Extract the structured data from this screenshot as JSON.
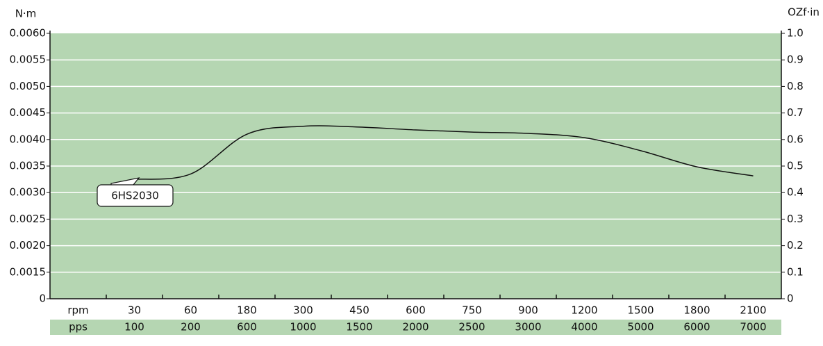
{
  "chart_data": {
    "type": "line",
    "y_label": "N·m",
    "y2_label": "OZf·in",
    "y_tick_labels": [
      "0",
      "0.0015",
      "0.0020",
      "0.0025",
      "0.0030",
      "0.0035",
      "0.0040",
      "0.0045",
      "0.0050",
      "0.0055",
      "0.0060"
    ],
    "y2lim": [
      0,
      1.0
    ],
    "y2ticks": [
      0,
      0.1,
      0.2,
      0.3,
      0.4,
      0.5,
      0.6,
      0.7,
      0.8,
      0.9,
      {
        "value": 1.0,
        "label": "1.0"
      }
    ],
    "x_row_names": [
      "rpm",
      "pps"
    ],
    "categories": [
      "30",
      "60",
      "180",
      "300",
      "450",
      "600",
      "750",
      "900",
      "1200",
      "1500",
      "1800",
      "2100"
    ],
    "categories_pps": [
      "100",
      "200",
      "600",
      "1000",
      "1500",
      "2000",
      "2500",
      "3000",
      "4000",
      "5000",
      "6000",
      "7000"
    ],
    "series": [
      {
        "name": "6HS2030",
        "color": "#111111",
        "axis": "y2",
        "values": [
          0.45,
          0.47,
          0.62,
          0.65,
          0.647,
          0.636,
          0.628,
          0.623,
          0.607,
          0.558,
          0.497,
          0.463
        ]
      }
    ],
    "background": "#b5d6b2",
    "grid": true
  }
}
